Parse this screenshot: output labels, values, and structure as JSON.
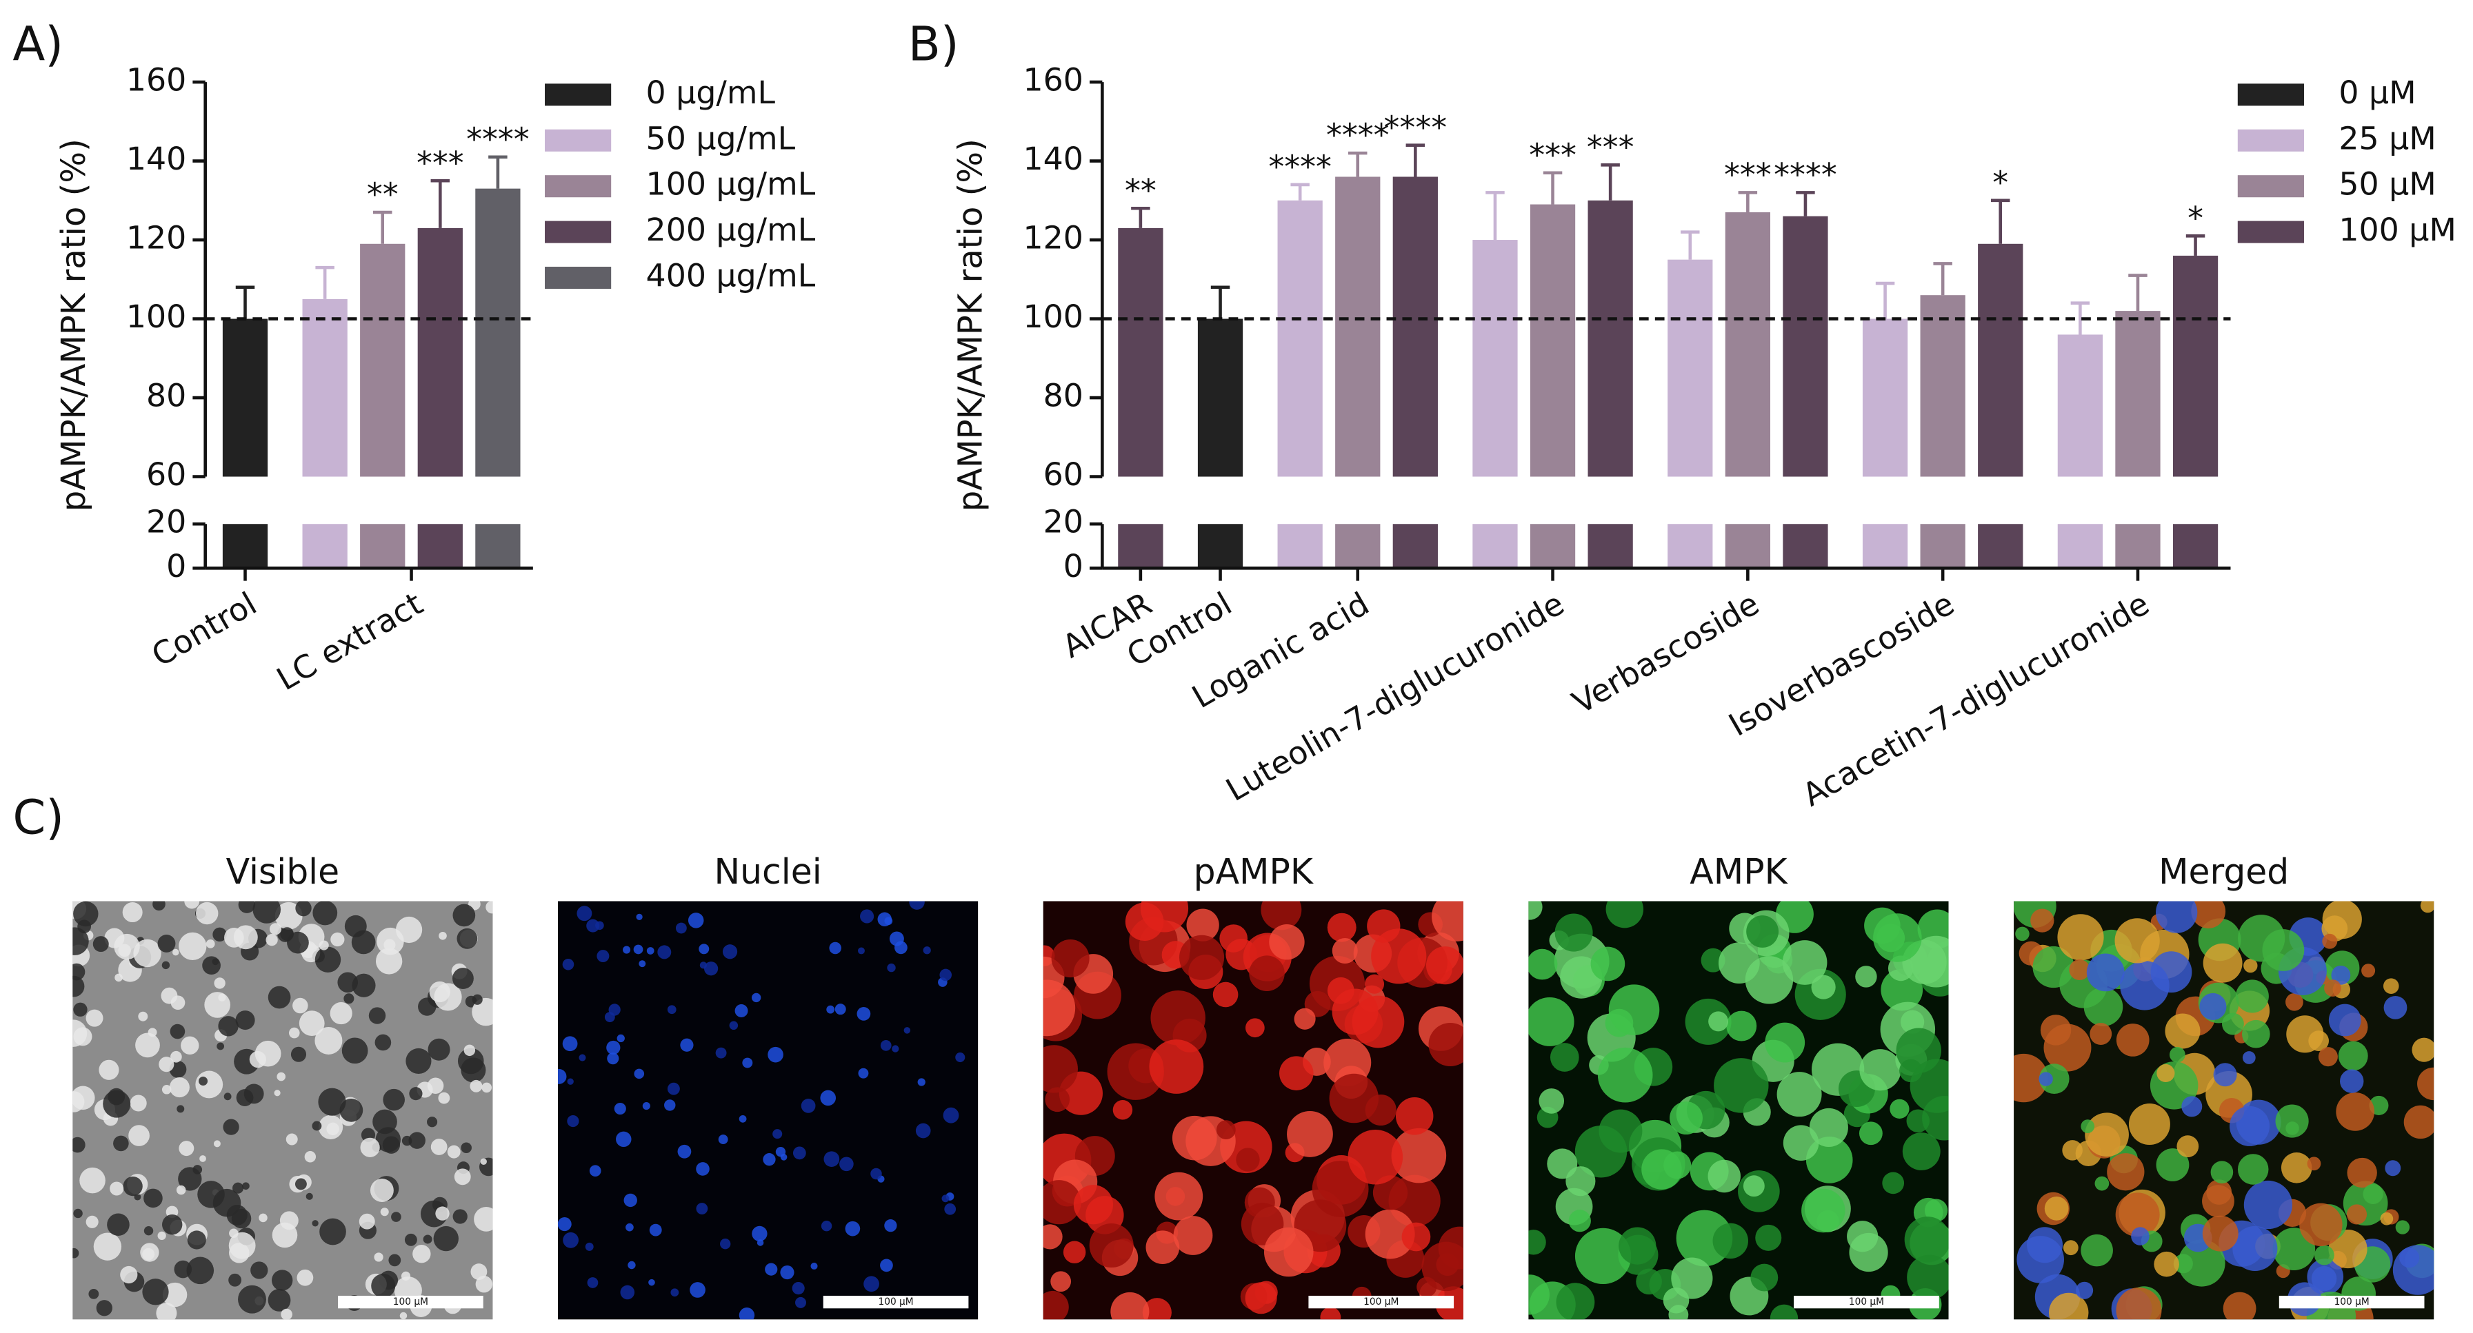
{
  "chart_data": [
    {
      "type": "bar",
      "panel_label": "A)",
      "ylabel": "pAMPK/AMPK ratio (%)",
      "categories": [
        "Control",
        "LC extract"
      ],
      "series": [
        {
          "name": "0 μg/mL",
          "color": "#222222",
          "values": [
            100,
            null
          ],
          "errors": [
            8,
            null
          ],
          "significance": [
            null,
            null
          ]
        },
        {
          "name": "50 μg/mL",
          "color": "#c7b3d3",
          "values": [
            null,
            105
          ],
          "errors": [
            null,
            8
          ],
          "significance": [
            null,
            null
          ]
        },
        {
          "name": "100 μg/mL",
          "color": "#9a8496",
          "values": [
            null,
            119
          ],
          "errors": [
            null,
            8
          ],
          "significance": [
            null,
            "**"
          ]
        },
        {
          "name": "200 μg/mL",
          "color": "#5b4458",
          "values": [
            null,
            123
          ],
          "errors": [
            null,
            12
          ],
          "significance": [
            null,
            "***"
          ]
        },
        {
          "name": "400 μg/mL",
          "color": "#616067",
          "values": [
            null,
            133
          ],
          "errors": [
            null,
            8
          ],
          "significance": [
            null,
            "****"
          ]
        }
      ],
      "ylim": [
        0,
        160
      ],
      "ybreak": [
        20,
        60
      ],
      "yticks": [
        0,
        20,
        60,
        80,
        100,
        120,
        140,
        160
      ],
      "reference_line": 100,
      "legend": "right"
    },
    {
      "type": "bar",
      "panel_label": "B)",
      "ylabel": "pAMPK/AMPK ratio (%)",
      "categories": [
        "AICAR",
        "Control",
        "Loganic acid",
        "Luteolin-7-diglucuronide",
        "Verbascoside",
        "Isoverbascoside",
        "Acacetin-7-diglucuronide"
      ],
      "series": [
        {
          "name": "0 μM",
          "color": "#222222",
          "values": [
            null,
            100,
            null,
            null,
            null,
            null,
            null
          ],
          "errors": [
            null,
            8,
            null,
            null,
            null,
            null,
            null
          ],
          "significance": [
            null,
            null,
            null,
            null,
            null,
            null,
            null
          ]
        },
        {
          "name": "25 μM",
          "color": "#c7b3d3",
          "values": [
            null,
            null,
            130,
            120,
            115,
            100,
            96
          ],
          "errors": [
            null,
            null,
            4,
            12,
            7,
            9,
            8
          ],
          "significance": [
            null,
            null,
            "****",
            null,
            null,
            null,
            null
          ]
        },
        {
          "name": "50 μM",
          "color": "#9a8496",
          "values": [
            null,
            null,
            136,
            129,
            127,
            106,
            102
          ],
          "errors": [
            null,
            null,
            6,
            8,
            5,
            8,
            9
          ],
          "significance": [
            null,
            null,
            "****",
            "***",
            "***",
            null,
            null
          ]
        },
        {
          "name": "100 μM",
          "color": "#5b4458",
          "values": [
            123,
            null,
            136,
            130,
            126,
            119,
            116
          ],
          "errors": [
            5,
            null,
            8,
            9,
            6,
            11,
            5
          ],
          "significance": [
            "**",
            null,
            "****",
            "***",
            "****",
            "*",
            "*"
          ]
        }
      ],
      "ylim": [
        0,
        160
      ],
      "ybreak": [
        20,
        60
      ],
      "yticks": [
        0,
        20,
        60,
        80,
        100,
        120,
        140,
        160
      ],
      "reference_line": 100,
      "legend": "right"
    }
  ],
  "panel_c": {
    "label": "C)",
    "images": [
      {
        "title": "Visible",
        "scale_bar": "100 μM"
      },
      {
        "title": "Nuclei",
        "scale_bar": "100 μM"
      },
      {
        "title": "pAMPK",
        "scale_bar": "100 μM"
      },
      {
        "title": "AMPK",
        "scale_bar": "100 μM"
      },
      {
        "title": "Merged",
        "scale_bar": "100 μM"
      }
    ]
  }
}
